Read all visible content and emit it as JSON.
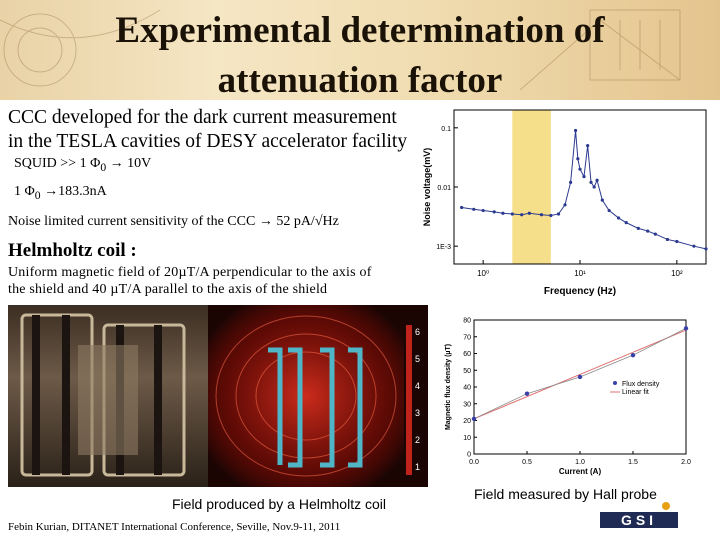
{
  "slide": {
    "title_line1": "Experimental determination of",
    "title_line2": "attenuation factor",
    "ccc_line1": "CCC developed for the dark current measurement",
    "ccc_line2": "in the TESLA cavities of DESY accelerator facility",
    "squid_prefix": "SQUID >> 1 Φ",
    "squid_sub": "0",
    "squid_suffix": "10V",
    "flux_prefix": "1 Φ",
    "flux_sub": "0",
    "flux_suffix": "183.3nA",
    "noise_prefix": "Noise limited current sensitivity of the CCC",
    "noise_value": "52 pA/√Hz",
    "helmholtz_heading": "Helmholtz coil :",
    "uniform_text": "Uniform magnetic field of 20µT/A perpendicular to the axis of the shield and 40 µT/A parallel to the axis of the shield",
    "caption_helmholtz": "Field produced by a Helmholtz coil",
    "caption_hall": "Field measured by Hall probe",
    "footer": "Febin Kurian, DITANET International Conference, Seville, Nov.9-11, 2011",
    "logo_text": "GSI"
  },
  "arrow_glyph": "→",
  "colors": {
    "noise_points": "#2b3a8f",
    "band": "#f6df8a",
    "fit_points": "#3a3fa8",
    "field_red": "#e0301e"
  },
  "chart_data": [
    {
      "type": "scatter",
      "title": "",
      "xlabel": "Frequency (Hz)",
      "ylabel": "Noise voltage(mV)",
      "xscale": "log",
      "yscale": "log",
      "xlim": [
        0.5,
        200
      ],
      "ylim": [
        0.0005,
        0.2
      ],
      "x_ticks": [
        "10⁰",
        "10¹",
        "10²"
      ],
      "y_ticks": [
        "0.1",
        "0.01",
        "1E-3"
      ],
      "series": [
        {
          "x": [
            0.6,
            0.8,
            1,
            1.3,
            1.6,
            2,
            2.5,
            3,
            4,
            5,
            6,
            7,
            8,
            9,
            9.5,
            10,
            11,
            12,
            13,
            14,
            15,
            17,
            20,
            25,
            30,
            40,
            50,
            60,
            80,
            100,
            150,
            200
          ],
          "y": [
            0.0045,
            0.0042,
            0.004,
            0.0038,
            0.0036,
            0.0035,
            0.0034,
            0.0036,
            0.0034,
            0.0033,
            0.0035,
            0.005,
            0.012,
            0.09,
            0.03,
            0.02,
            0.015,
            0.05,
            0.012,
            0.01,
            0.013,
            0.006,
            0.004,
            0.003,
            0.0025,
            0.002,
            0.0018,
            0.0016,
            0.0013,
            0.0012,
            0.001,
            0.0009
          ]
        }
      ],
      "highlight_band": [
        2,
        5
      ]
    },
    {
      "type": "scatter",
      "title": "",
      "xlabel": "Current (A)",
      "ylabel": "Magnetic flux density (µT)",
      "xlim": [
        0.0,
        2.0
      ],
      "ylim": [
        0,
        80
      ],
      "x_ticks": [
        "0.0",
        "0.5",
        "1.0",
        "1.5",
        "2.0"
      ],
      "y_ticks": [
        "0",
        "10",
        "20",
        "30",
        "40",
        "50",
        "60",
        "70",
        "80"
      ],
      "legend": [
        "Flux density",
        "Linear fit"
      ],
      "series": [
        {
          "name": "Flux density",
          "x": [
            0.0,
            0.5,
            1.0,
            1.5,
            2.0
          ],
          "y": [
            21,
            36,
            46,
            59,
            75
          ]
        },
        {
          "name": "Linear fit",
          "x": [
            0.0,
            2.0
          ],
          "y": [
            21,
            74
          ]
        }
      ]
    }
  ]
}
